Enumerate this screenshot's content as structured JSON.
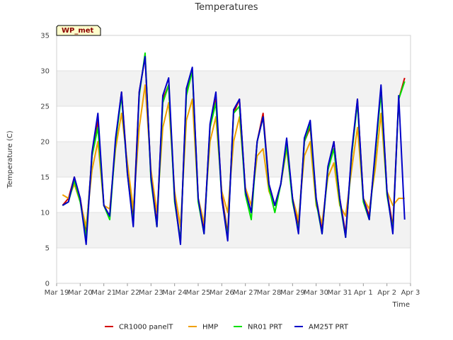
{
  "chart_data": {
    "type": "line",
    "title": "Temperatures",
    "xlabel": "Time",
    "ylabel": "Temperature (C)",
    "site_label": "WP_met",
    "ylim": [
      0,
      35
    ],
    "yticks": [
      0,
      5,
      10,
      15,
      20,
      25,
      30,
      35
    ],
    "xlim": [
      "2020-03-19",
      "2020-04-03"
    ],
    "xticks": [
      "Mar 19",
      "Mar 20",
      "Mar 21",
      "Mar 22",
      "Mar 23",
      "Mar 24",
      "Mar 25",
      "Mar 26",
      "Mar 27",
      "Mar 28",
      "Mar 29",
      "Mar 30",
      "Mar 31",
      "Apr 1",
      "Apr 2",
      "Apr 3"
    ],
    "grid": "horizontal bands",
    "legend_position": "bottom",
    "x": [
      "2020-03-19 06:00",
      "2020-03-19 12:00",
      "2020-03-19 18:00",
      "2020-03-20 00:00",
      "2020-03-20 06:00",
      "2020-03-20 12:00",
      "2020-03-20 18:00",
      "2020-03-21 00:00",
      "2020-03-21 06:00",
      "2020-03-21 12:00",
      "2020-03-21 18:00",
      "2020-03-22 00:00",
      "2020-03-22 06:00",
      "2020-03-22 12:00",
      "2020-03-22 18:00",
      "2020-03-23 00:00",
      "2020-03-23 06:00",
      "2020-03-23 12:00",
      "2020-03-23 18:00",
      "2020-03-24 00:00",
      "2020-03-24 06:00",
      "2020-03-24 12:00",
      "2020-03-24 18:00",
      "2020-03-25 00:00",
      "2020-03-25 06:00",
      "2020-03-25 12:00",
      "2020-03-25 18:00",
      "2020-03-26 00:00",
      "2020-03-26 06:00",
      "2020-03-26 12:00",
      "2020-03-26 18:00",
      "2020-03-27 00:00",
      "2020-03-27 06:00",
      "2020-03-27 12:00",
      "2020-03-27 18:00",
      "2020-03-28 00:00",
      "2020-03-28 06:00",
      "2020-03-28 12:00",
      "2020-03-28 18:00",
      "2020-03-29 00:00",
      "2020-03-29 06:00",
      "2020-03-29 12:00",
      "2020-03-29 18:00",
      "2020-03-30 00:00",
      "2020-03-30 06:00",
      "2020-03-30 12:00",
      "2020-03-30 18:00",
      "2020-03-31 00:00",
      "2020-03-31 06:00",
      "2020-03-31 12:00",
      "2020-03-31 18:00",
      "2020-04-01 00:00",
      "2020-04-01 06:00",
      "2020-04-01 12:00",
      "2020-04-01 18:00",
      "2020-04-02 00:00",
      "2020-04-02 06:00",
      "2020-04-02 12:00",
      "2020-04-02 18:00"
    ],
    "series": [
      {
        "name": "CR1000 panelT",
        "color": "#d40000",
        "values": [
          11.0,
          12.0,
          15.0,
          12.0,
          7.0,
          18.0,
          23.0,
          11.0,
          9.5,
          20.0,
          27.0,
          16.0,
          9.0,
          27.0,
          32.0,
          15.0,
          8.5,
          26.0,
          28.0,
          12.0,
          6.0,
          27.0,
          30.0,
          12.0,
          7.5,
          22.0,
          26.0,
          12.5,
          7.0,
          24.0,
          26.0,
          13.0,
          10.0,
          20.0,
          24.0,
          14.0,
          11.0,
          14.0,
          20.0,
          12.0,
          8.0,
          20.0,
          22.0,
          12.0,
          7.5,
          16.0,
          20.0,
          12.0,
          7.0,
          18.0,
          26.0,
          12.0,
          9.5,
          18.0,
          27.5,
          13.0,
          8.0,
          26.0,
          29.0
        ]
      },
      {
        "name": "HMP",
        "color": "#f0a000",
        "values": [
          12.5,
          12.0,
          14.0,
          11.5,
          8.0,
          16.0,
          20.0,
          11.0,
          10.5,
          19.0,
          24.0,
          17.0,
          10.5,
          22.0,
          28.0,
          16.0,
          10.0,
          22.0,
          25.5,
          13.0,
          8.0,
          23.0,
          26.0,
          12.0,
          8.5,
          20.0,
          23.5,
          13.0,
          10.0,
          20.0,
          23.5,
          13.5,
          11.0,
          18.0,
          19.0,
          13.0,
          11.0,
          14.0,
          19.0,
          12.0,
          9.0,
          18.0,
          20.0,
          11.0,
          8.5,
          15.0,
          17.0,
          11.0,
          9.5,
          16.0,
          22.0,
          12.0,
          10.5,
          16.0,
          24.0,
          13.0,
          11.0,
          12.0,
          12.0
        ]
      },
      {
        "name": "NR01 PRT",
        "color": "#00e000",
        "values": [
          11.0,
          11.5,
          14.5,
          11.5,
          6.5,
          18.0,
          22.0,
          11.0,
          9.0,
          20.0,
          26.5,
          15.5,
          8.5,
          26.5,
          32.5,
          14.5,
          8.0,
          25.5,
          28.0,
          11.5,
          6.0,
          26.5,
          30.0,
          11.5,
          7.0,
          22.0,
          25.5,
          12.0,
          6.5,
          24.0,
          25.0,
          12.5,
          9.0,
          20.0,
          23.5,
          13.5,
          10.0,
          14.0,
          19.5,
          11.5,
          7.5,
          20.0,
          22.5,
          11.5,
          7.0,
          16.0,
          19.0,
          11.5,
          6.5,
          18.0,
          25.5,
          11.5,
          9.0,
          18.0,
          27.0,
          12.5,
          7.5,
          26.0,
          28.5
        ]
      },
      {
        "name": "AM25T PRT",
        "color": "#0000c8",
        "values": [
          11.0,
          11.5,
          15.0,
          12.0,
          5.5,
          18.5,
          24.0,
          11.0,
          9.5,
          20.5,
          27.0,
          15.5,
          8.0,
          27.0,
          32.0,
          15.0,
          8.0,
          26.5,
          29.0,
          12.0,
          5.5,
          27.5,
          30.5,
          12.0,
          7.0,
          22.5,
          27.0,
          12.0,
          6.0,
          24.5,
          26.0,
          13.0,
          10.0,
          20.0,
          23.5,
          14.0,
          11.0,
          14.0,
          20.5,
          12.0,
          7.0,
          20.5,
          23.0,
          12.0,
          7.0,
          16.5,
          20.0,
          12.0,
          6.5,
          18.5,
          26.0,
          12.0,
          9.0,
          18.5,
          28.0,
          13.0,
          7.0,
          26.5,
          9.0
        ]
      }
    ]
  }
}
